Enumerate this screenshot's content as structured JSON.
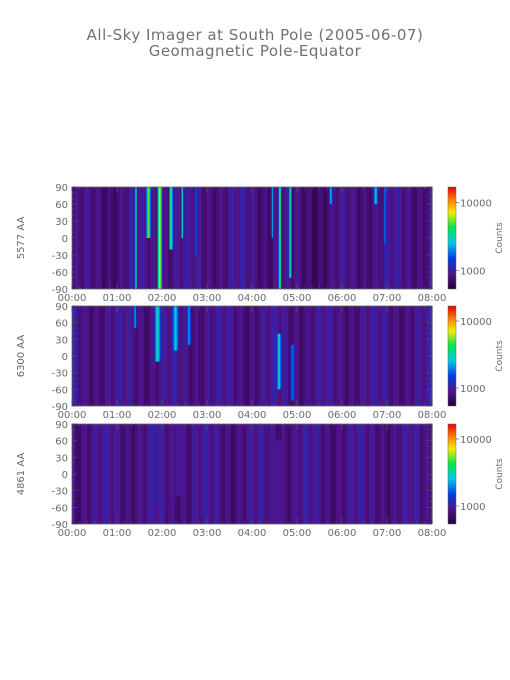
{
  "title": "All-Sky Imager at South Pole (2005-06-07)",
  "subtitle": "Geomagnetic Pole-Equator",
  "colorbar_label": "Counts",
  "chart_data": [
    {
      "type": "heatmap",
      "ylabel": "5577 AA",
      "x_ticks": [
        "00:00",
        "01:00",
        "02:00",
        "03:00",
        "04:00",
        "05:00",
        "06:00",
        "07:00",
        "08:00"
      ],
      "xlim": [
        "00:00",
        "08:00"
      ],
      "y_ticks": [
        90,
        60,
        30,
        0,
        -30,
        -60,
        -90
      ],
      "ylim": [
        -90,
        90
      ],
      "colorbar_ticks": [
        "10000",
        "1000"
      ],
      "colorbar_scale": "log",
      "activity": [
        {
          "center_hours": 1.42,
          "width_hours": 0.05,
          "lat_min": -90,
          "lat_max": 90,
          "level": 0.6
        },
        {
          "center_hours": 1.7,
          "width_hours": 0.12,
          "lat_min": 0,
          "lat_max": 90,
          "level": 0.75
        },
        {
          "center_hours": 1.95,
          "width_hours": 0.12,
          "lat_min": -90,
          "lat_max": 90,
          "level": 0.85
        },
        {
          "center_hours": 2.2,
          "width_hours": 0.1,
          "lat_min": -20,
          "lat_max": 90,
          "level": 0.7
        },
        {
          "center_hours": 2.45,
          "width_hours": 0.06,
          "lat_min": 0,
          "lat_max": 90,
          "level": 0.55
        },
        {
          "center_hours": 2.75,
          "width_hours": 0.06,
          "lat_min": -30,
          "lat_max": 90,
          "level": 0.35
        },
        {
          "center_hours": 4.45,
          "width_hours": 0.05,
          "lat_min": 0,
          "lat_max": 90,
          "level": 0.45
        },
        {
          "center_hours": 4.62,
          "width_hours": 0.07,
          "lat_min": -90,
          "lat_max": 90,
          "level": 0.7
        },
        {
          "center_hours": 4.85,
          "width_hours": 0.08,
          "lat_min": -70,
          "lat_max": 90,
          "level": 0.6
        },
        {
          "center_hours": 5.75,
          "width_hours": 0.08,
          "lat_min": 60,
          "lat_max": 90,
          "level": 0.5
        },
        {
          "center_hours": 6.75,
          "width_hours": 0.1,
          "lat_min": 60,
          "lat_max": 90,
          "level": 0.55
        },
        {
          "center_hours": 6.95,
          "width_hours": 0.05,
          "lat_min": -10,
          "lat_max": 90,
          "level": 0.4
        }
      ]
    },
    {
      "type": "heatmap",
      "ylabel": "6300 AA",
      "x_ticks": [
        "00:00",
        "01:00",
        "02:00",
        "03:00",
        "04:00",
        "05:00",
        "06:00",
        "07:00",
        "08:00"
      ],
      "xlim": [
        "00:00",
        "08:00"
      ],
      "y_ticks": [
        90,
        60,
        30,
        0,
        -30,
        -60,
        -90
      ],
      "ylim": [
        -90,
        90
      ],
      "colorbar_ticks": [
        "10000",
        "1000"
      ],
      "colorbar_scale": "log",
      "activity": [
        {
          "center_hours": 1.4,
          "width_hours": 0.08,
          "lat_min": 50,
          "lat_max": 90,
          "level": 0.45
        },
        {
          "center_hours": 1.9,
          "width_hours": 0.15,
          "lat_min": -10,
          "lat_max": 90,
          "level": 0.6
        },
        {
          "center_hours": 2.3,
          "width_hours": 0.15,
          "lat_min": 10,
          "lat_max": 90,
          "level": 0.55
        },
        {
          "center_hours": 2.6,
          "width_hours": 0.1,
          "lat_min": 20,
          "lat_max": 90,
          "level": 0.45
        },
        {
          "center_hours": 4.6,
          "width_hours": 0.12,
          "lat_min": -60,
          "lat_max": 40,
          "level": 0.55
        },
        {
          "center_hours": 4.9,
          "width_hours": 0.1,
          "lat_min": -80,
          "lat_max": 20,
          "level": 0.4
        }
      ]
    },
    {
      "type": "heatmap",
      "ylabel": "4861 AA",
      "x_ticks": [
        "00:00",
        "01:00",
        "02:00",
        "03:00",
        "04:00",
        "05:00",
        "06:00",
        "07:00",
        "08:00"
      ],
      "xlim": [
        "00:00",
        "08:00"
      ],
      "y_ticks": [
        90,
        60,
        30,
        0,
        -30,
        -60,
        -90
      ],
      "ylim": [
        -90,
        90
      ],
      "colorbar_ticks": [
        "10000",
        "1000"
      ],
      "colorbar_scale": "log",
      "activity": [
        {
          "center_hours": 1.9,
          "width_hours": 0.2,
          "lat_min": -60,
          "lat_max": 90,
          "level": 0.18
        },
        {
          "center_hours": 2.4,
          "width_hours": 0.2,
          "lat_min": -40,
          "lat_max": 90,
          "level": 0.15
        },
        {
          "center_hours": 4.6,
          "width_hours": 0.15,
          "lat_min": -90,
          "lat_max": 60,
          "level": 0.15
        }
      ]
    }
  ]
}
